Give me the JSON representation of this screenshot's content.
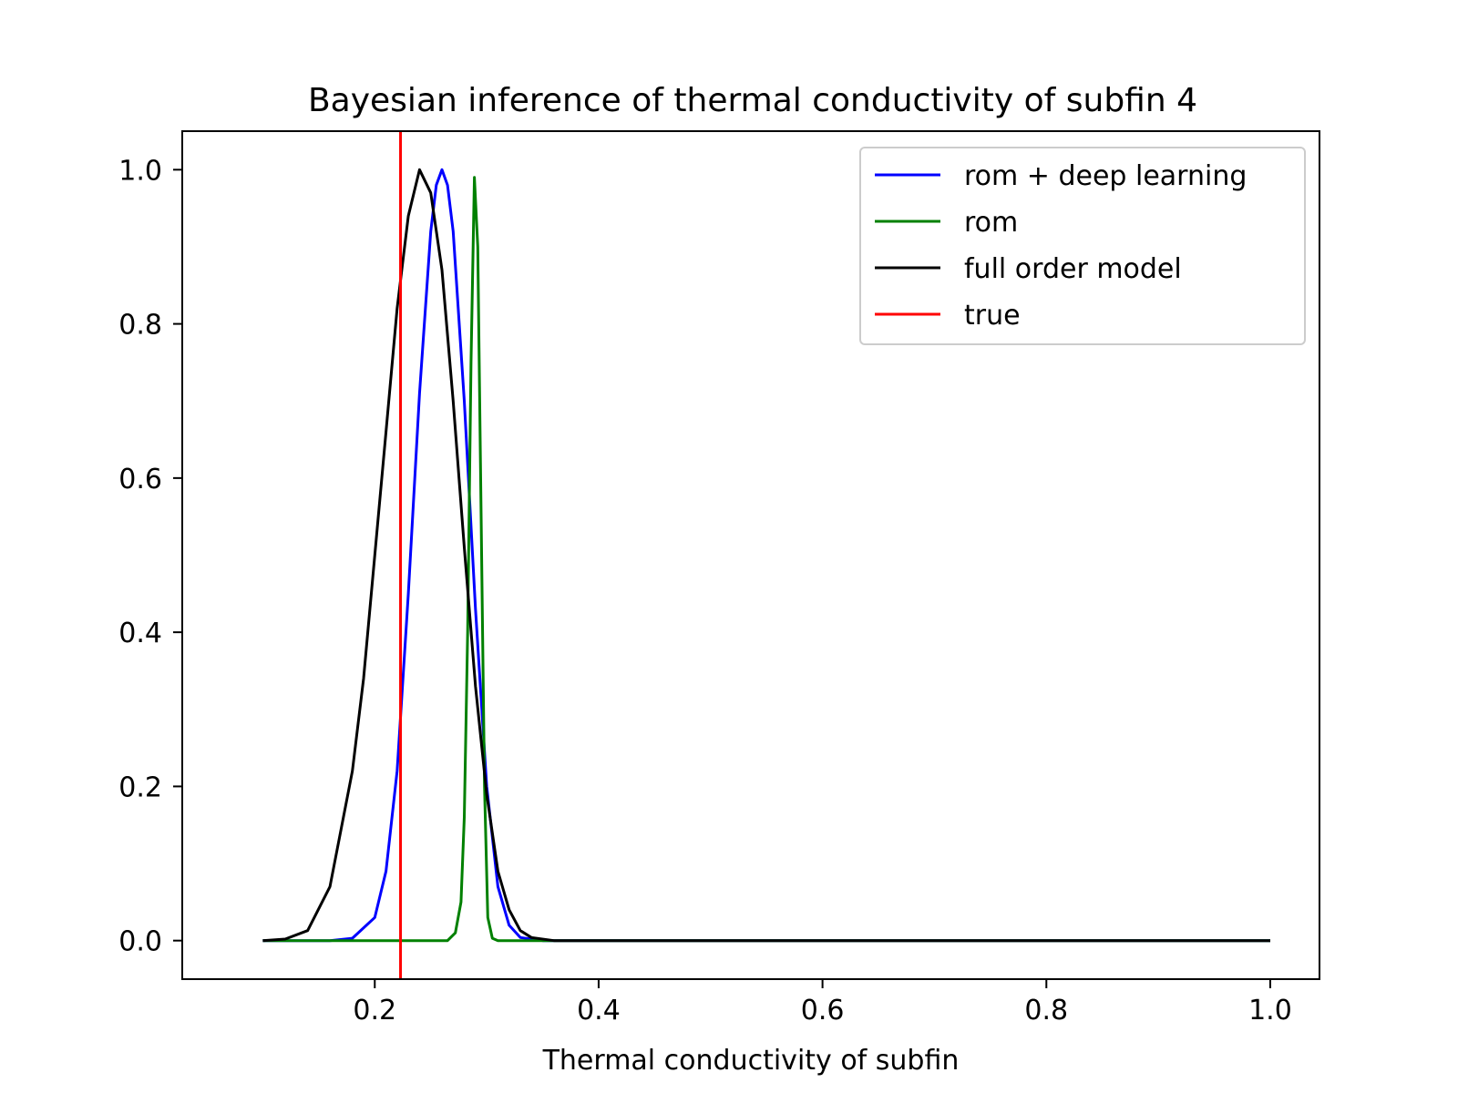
{
  "chart_data": {
    "type": "line",
    "title": "Bayesian inference of thermal conductivity of subfin 4",
    "xlabel": "Thermal conductivity of subfin",
    "ylabel": "",
    "xlim": [
      0.028,
      1.044
    ],
    "ylim": [
      -0.05,
      1.05
    ],
    "xticks": [
      0.2,
      0.4,
      0.6,
      0.8,
      1.0
    ],
    "xtick_labels": [
      "0.2",
      "0.4",
      "0.6",
      "0.8",
      "1.0"
    ],
    "yticks": [
      0.0,
      0.2,
      0.4,
      0.6,
      0.8,
      1.0
    ],
    "ytick_labels": [
      "0.0",
      "0.2",
      "0.4",
      "0.6",
      "0.8",
      "1.0"
    ],
    "grid": false,
    "legend_position": "top-right",
    "series": [
      {
        "name": "rom + deep learning",
        "color": "#0000ff",
        "x": [
          0.1,
          0.16,
          0.18,
          0.2,
          0.21,
          0.22,
          0.23,
          0.24,
          0.25,
          0.255,
          0.26,
          0.265,
          0.27,
          0.28,
          0.29,
          0.3,
          0.31,
          0.32,
          0.33,
          0.35,
          1.0
        ],
        "y": [
          0.0,
          0.0,
          0.003,
          0.03,
          0.09,
          0.22,
          0.45,
          0.71,
          0.92,
          0.98,
          1.0,
          0.98,
          0.92,
          0.7,
          0.43,
          0.2,
          0.07,
          0.02,
          0.004,
          0.0,
          0.0
        ]
      },
      {
        "name": "rom",
        "color": "#008000",
        "x": [
          0.1,
          0.265,
          0.272,
          0.277,
          0.28,
          0.283,
          0.286,
          0.289,
          0.292,
          0.295,
          0.298,
          0.301,
          0.305,
          0.31,
          1.0
        ],
        "y": [
          0.0,
          0.0,
          0.01,
          0.05,
          0.16,
          0.4,
          0.75,
          0.99,
          0.9,
          0.55,
          0.2,
          0.03,
          0.003,
          0.0,
          0.0
        ]
      },
      {
        "name": "full order model",
        "color": "#000000",
        "x": [
          0.1,
          0.12,
          0.14,
          0.16,
          0.18,
          0.19,
          0.2,
          0.21,
          0.22,
          0.23,
          0.24,
          0.25,
          0.26,
          0.27,
          0.28,
          0.29,
          0.3,
          0.31,
          0.32,
          0.33,
          0.34,
          0.36,
          0.38,
          1.0
        ],
        "y": [
          0.0,
          0.002,
          0.013,
          0.07,
          0.22,
          0.34,
          0.5,
          0.66,
          0.82,
          0.94,
          1.0,
          0.97,
          0.87,
          0.7,
          0.51,
          0.33,
          0.19,
          0.09,
          0.04,
          0.013,
          0.004,
          0.0,
          0.0,
          0.0
        ]
      },
      {
        "name": "true",
        "color": "#ff0000",
        "vline": 0.223
      }
    ]
  }
}
